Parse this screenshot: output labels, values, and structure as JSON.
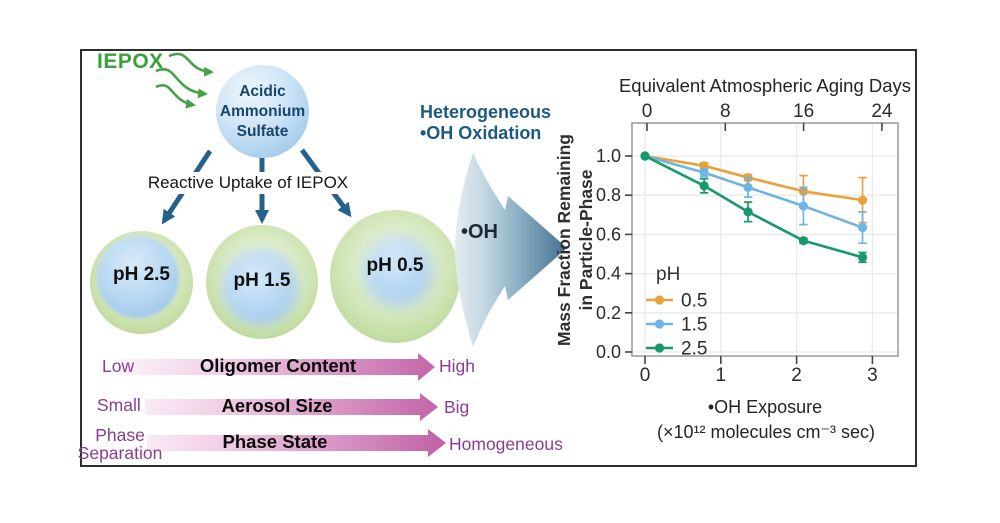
{
  "left_panel": {
    "iepox_label": "IEPOX",
    "as_sphere": {
      "line1": "Acidic",
      "line2": "Ammonium",
      "line3": "Sulfate"
    },
    "uptake_label": "Reactive Uptake of IEPOX",
    "spheres": [
      {
        "label": "pH 2.5"
      },
      {
        "label": "pH 1.5"
      },
      {
        "label": "pH 0.5"
      }
    ],
    "gradient_rows": [
      {
        "left": "Low",
        "center": "Oligomer Content",
        "right": "High"
      },
      {
        "left": "Small",
        "center": "Aerosol Size",
        "right": "Big"
      },
      {
        "left": "Phase Separation",
        "center": "Phase State",
        "right": "Homogeneous"
      }
    ]
  },
  "middle": {
    "heading_line1": "Heterogeneous",
    "heading_line2": "•OH Oxidation",
    "oh_label": "•OH"
  },
  "chart_data": {
    "type": "line",
    "title": "Equivalent Atmospheric Aging Days",
    "top_axis_label": "Equivalent Atmospheric Aging Days",
    "top_ticks": [
      "0",
      "8",
      "16",
      "24"
    ],
    "x_ticks": [
      0,
      1,
      2,
      3
    ],
    "y_ticks": [
      0.0,
      0.2,
      0.4,
      0.6,
      0.8,
      1.0
    ],
    "xlabel_line1": "•OH Exposure",
    "xlabel_line2": "(×10¹² molecules cm⁻³ sec)",
    "ylabel_line1": "Mass Fraction Remaining",
    "ylabel_line2": "in Particle-Phase",
    "legend_title": "pH",
    "legend_position": "lower-left",
    "grid": true,
    "xlim": [
      -0.17,
      3.35
    ],
    "ylim": [
      -0.01,
      1.17
    ],
    "x": [
      0,
      0.78,
      1.36,
      2.09,
      2.87
    ],
    "series": [
      {
        "name": "0.5",
        "color": "#E9A13B",
        "values": [
          1.0,
          0.95,
          0.89,
          0.82,
          0.775
        ],
        "errors": [
          0,
          0.015,
          0.015,
          0.08,
          0.115
        ]
      },
      {
        "name": "1.5",
        "color": "#6FB4E3",
        "values": [
          1.0,
          0.915,
          0.84,
          0.745,
          0.635
        ],
        "errors": [
          0,
          0.02,
          0.05,
          0.095,
          0.08
        ]
      },
      {
        "name": "2.5",
        "color": "#17996B",
        "values": [
          1.0,
          0.848,
          0.715,
          0.568,
          0.483
        ],
        "errors": [
          0,
          0.036,
          0.05,
          0.012,
          0.025
        ]
      }
    ]
  },
  "colors": {
    "accent_green": "#3aa03c",
    "steel_arrow": "#24618b",
    "heading_blue": "#1d5a80",
    "magenta_arrow": "#c263a7",
    "purple_label": "#8c3c93"
  }
}
